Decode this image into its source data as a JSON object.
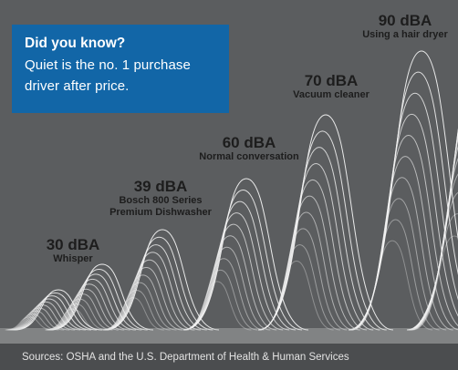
{
  "callout": {
    "heading": "Did you know?",
    "body": "Quiet is the no. 1 purchase driver after price."
  },
  "levels": [
    {
      "db": "30 dBA",
      "desc": "Whisper"
    },
    {
      "db": "39 dBA",
      "desc": "Bosch 800 Series Premium Dishwasher"
    },
    {
      "db": "60 dBA",
      "desc": "Normal conversation"
    },
    {
      "db": "70 dBA",
      "desc": "Vacuum cleaner"
    },
    {
      "db": "90 dBA",
      "desc": "Using a hair dryer"
    }
  ],
  "footer": {
    "source": "Sources: OSHA and the U.S. Department of Health & Human Services"
  },
  "colors": {
    "background": "#5b5d5f",
    "callout": "#1266a7",
    "footer": "#4b4d4f",
    "waves": "#f2f2f2"
  }
}
